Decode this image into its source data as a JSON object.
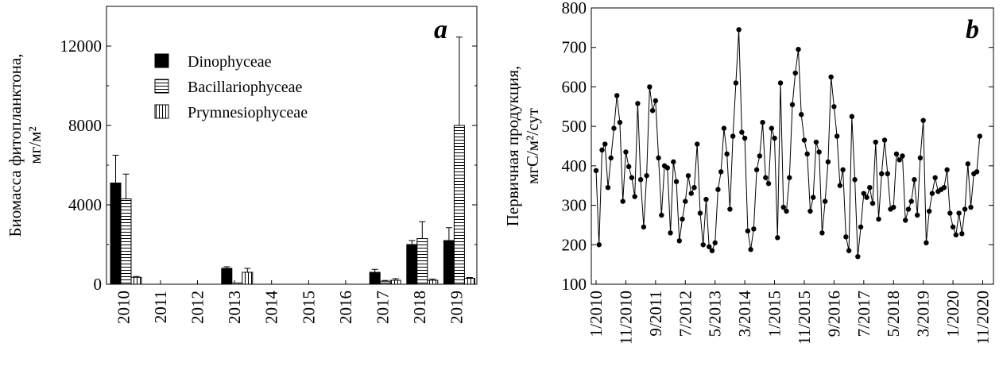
{
  "chart_data": [
    {
      "panel": "a",
      "type": "bar",
      "ylabel": [
        "Биомасса фитопланктона,",
        "мг/м²"
      ],
      "ylim": [
        0,
        14000
      ],
      "yticks": [
        0,
        4000,
        8000,
        12000
      ],
      "categories": [
        "2010",
        "2011",
        "2012",
        "2013",
        "2014",
        "2015",
        "2016",
        "2017",
        "2018",
        "2019"
      ],
      "series": [
        {
          "name": "Dinophyceae",
          "values": [
            5100,
            0,
            0,
            800,
            0,
            0,
            0,
            600,
            2000,
            2200
          ],
          "errors": [
            1400,
            0,
            0,
            80,
            0,
            0,
            0,
            150,
            200,
            650
          ]
        },
        {
          "name": "Bacillariophyceae",
          "values": [
            4300,
            0,
            0,
            60,
            0,
            0,
            0,
            150,
            2300,
            8000
          ],
          "errors": [
            1250,
            0,
            0,
            0,
            0,
            0,
            0,
            40,
            850,
            4450
          ]
        },
        {
          "name": "Prymnesiophyceae",
          "values": [
            350,
            0,
            0,
            600,
            0,
            0,
            0,
            200,
            200,
            300
          ],
          "errors": [
            40,
            0,
            0,
            200,
            0,
            0,
            0,
            80,
            60,
            40
          ]
        }
      ],
      "legend_position": "top-left"
    },
    {
      "panel": "b",
      "type": "line",
      "ylabel": [
        "Первичная продукция,",
        "мгС/м²/сут"
      ],
      "ylim": [
        100,
        800
      ],
      "yticks": [
        100,
        200,
        300,
        400,
        500,
        600,
        700,
        800
      ],
      "xticks": [
        "1/2010",
        "11/2010",
        "9/2011",
        "7/2012",
        "5/2013",
        "3/2014",
        "1/2015",
        "11/2015",
        "9/2016",
        "7/2017",
        "5/2018",
        "3/2019",
        "1/2020",
        "11/2020"
      ],
      "xrange_months": [
        0,
        132
      ],
      "series": [
        {
          "name": "",
          "x": [
            0,
            1,
            2,
            3,
            4,
            5,
            6,
            7,
            8,
            9,
            10,
            11,
            12,
            13,
            14,
            15,
            16,
            17,
            18,
            19,
            20,
            21,
            22,
            23,
            24,
            25,
            26,
            27,
            28,
            29,
            30,
            31,
            32,
            33,
            34,
            35,
            36,
            37,
            38,
            39,
            40,
            41,
            42,
            43,
            44,
            45,
            46,
            47,
            48,
            49,
            50,
            51,
            52,
            53,
            54,
            55,
            56,
            57,
            58,
            59,
            60,
            61,
            62,
            63,
            64,
            65,
            66,
            67,
            68,
            69,
            70,
            71,
            72,
            73,
            74,
            75,
            76,
            77,
            78,
            79,
            80,
            81,
            82,
            83,
            84,
            85,
            86,
            87,
            88,
            89,
            90,
            91,
            92,
            93,
            94,
            95,
            96,
            97,
            98,
            99,
            100,
            101,
            102,
            103,
            104,
            105,
            106,
            107,
            108,
            109,
            110,
            111,
            112,
            113,
            114,
            115,
            116,
            117,
            118,
            119,
            120,
            121,
            122,
            123,
            124,
            125,
            126,
            127,
            128,
            129
          ],
          "y": [
            388,
            200,
            440,
            455,
            345,
            420,
            495,
            578,
            510,
            310,
            435,
            398,
            370,
            322,
            558,
            365,
            245,
            375,
            600,
            540,
            565,
            420,
            275,
            400,
            395,
            230,
            410,
            360,
            210,
            265,
            310,
            375,
            330,
            345,
            455,
            280,
            200,
            315,
            195,
            185,
            205,
            340,
            385,
            495,
            430,
            290,
            475,
            610,
            745,
            485,
            470,
            235,
            188,
            240,
            390,
            425,
            510,
            370,
            355,
            495,
            470,
            218,
            610,
            295,
            285,
            370,
            555,
            635,
            695,
            530,
            465,
            430,
            285,
            320,
            460,
            435,
            230,
            310,
            410,
            625,
            550,
            475,
            350,
            390,
            220,
            185,
            525,
            365,
            170,
            245,
            330,
            320,
            345,
            305,
            460,
            265,
            380,
            465,
            380,
            290,
            295,
            430,
            415,
            425,
            262,
            290,
            310,
            365,
            275,
            420,
            515,
            205,
            285,
            330,
            370,
            335,
            340,
            345,
            390,
            280,
            245,
            225,
            280,
            228,
            290,
            405,
            295,
            380,
            385,
            475
          ]
        }
      ]
    }
  ],
  "panels": {
    "a": {
      "letter": "a"
    },
    "b": {
      "letter": "b"
    }
  },
  "colors": {
    "dinophyceae": "#000000",
    "line": "#000000",
    "marker": "#000000"
  }
}
